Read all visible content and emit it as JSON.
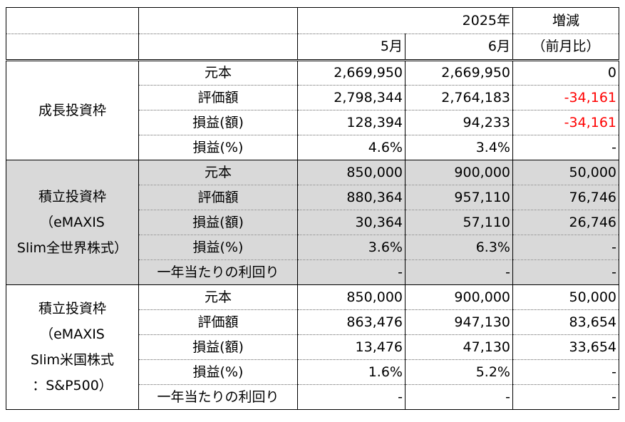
{
  "header": {
    "year_label": "2025年",
    "change_label_1": "増減",
    "change_label_2": "（前月比）",
    "month_1": "5月",
    "month_2": "6月"
  },
  "groups": [
    {
      "name_lines": [
        "成長投資枠"
      ],
      "shaded": false,
      "rows": [
        {
          "label": "元本",
          "may": "2,669,950",
          "jun": "2,669,950",
          "diff": "0",
          "negative": false
        },
        {
          "label": "評価額",
          "may": "2,798,344",
          "jun": "2,764,183",
          "diff": "-34,161",
          "negative": true
        },
        {
          "label": "損益(額)",
          "may": "128,394",
          "jun": "94,233",
          "diff": "-34,161",
          "negative": true
        },
        {
          "label": "損益(%)",
          "may": "4.6%",
          "jun": "3.4%",
          "diff": "-",
          "negative": false
        }
      ]
    },
    {
      "name_lines": [
        "積立投資枠",
        "（eMAXIS",
        "Slim全世界株式）"
      ],
      "shaded": true,
      "rows": [
        {
          "label": "元本",
          "may": "850,000",
          "jun": "900,000",
          "diff": "50,000",
          "negative": false
        },
        {
          "label": "評価額",
          "may": "880,364",
          "jun": "957,110",
          "diff": "76,746",
          "negative": false
        },
        {
          "label": "損益(額)",
          "may": "30,364",
          "jun": "57,110",
          "diff": "26,746",
          "negative": false
        },
        {
          "label": "損益(%)",
          "may": "3.6%",
          "jun": "6.3%",
          "diff": "-",
          "negative": false
        },
        {
          "label": "一年当たりの利回り",
          "may": "-",
          "jun": "-",
          "diff": "-",
          "negative": false
        }
      ]
    },
    {
      "name_lines": [
        "積立投資枠",
        "（eMAXIS",
        "Slim米国株式",
        "：S&P500）"
      ],
      "shaded": false,
      "rows": [
        {
          "label": "元本",
          "may": "850,000",
          "jun": "900,000",
          "diff": "50,000",
          "negative": false
        },
        {
          "label": "評価額",
          "may": "863,476",
          "jun": "947,130",
          "diff": "83,654",
          "negative": false
        },
        {
          "label": "損益(額)",
          "may": "13,476",
          "jun": "47,130",
          "diff": "33,654",
          "negative": false
        },
        {
          "label": "損益(%)",
          "may": "1.6%",
          "jun": "5.2%",
          "diff": "-",
          "negative": false
        },
        {
          "label": "一年当たりの利回り",
          "may": "-",
          "jun": "-",
          "diff": "-",
          "negative": false
        }
      ]
    }
  ],
  "colors": {
    "shade": "#d9d9d9",
    "negative": "#ff0000"
  }
}
